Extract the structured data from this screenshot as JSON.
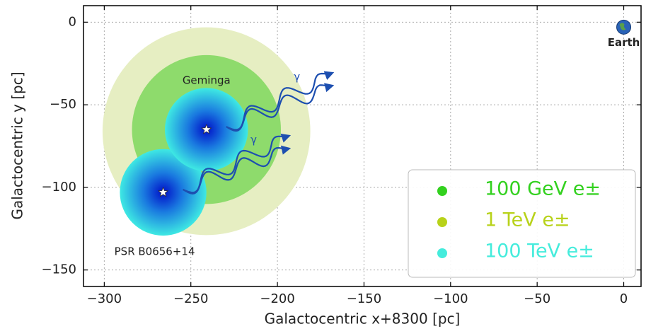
{
  "chart_data": {
    "type": "regions",
    "xlabel": "Galactocentric x+8300 [pc]",
    "ylabel": "Galactocentric y [pc]",
    "xlim": [
      -312,
      10
    ],
    "ylim": [
      -160,
      10
    ],
    "xticks": [
      {
        "value": -300,
        "label": "−300"
      },
      {
        "value": -250,
        "label": "−250"
      },
      {
        "value": -200,
        "label": "−200"
      },
      {
        "value": -150,
        "label": "−150"
      },
      {
        "value": -100,
        "label": "−100"
      },
      {
        "value": -50,
        "label": "−50"
      },
      0
    ],
    "yticks": [
      0,
      {
        "value": -50,
        "label": "−50"
      },
      {
        "value": -100,
        "label": "−100"
      },
      {
        "value": -150,
        "label": "−150"
      }
    ],
    "grid": true,
    "legend": "lower right",
    "series": [
      {
        "name": "100 GeV e±",
        "color": "#8edb6c",
        "legend_color": "#33d11f",
        "regions": [
          {
            "x": -241,
            "y": -65,
            "r": 43
          }
        ]
      },
      {
        "name": "1 TeV e±",
        "color": "#e6eec2",
        "legend_color": "#b8d21a",
        "regions": [
          {
            "x": -241,
            "y": -66,
            "r": 60
          }
        ]
      },
      {
        "name": "100 TeV e±",
        "color": "#3ee9e3",
        "legend_color": "#45ecdc",
        "regions": [
          {
            "x": -241,
            "y": -65,
            "r": 24
          },
          {
            "x": -266,
            "y": -103,
            "r": 25
          }
        ]
      }
    ],
    "sources": [
      {
        "name": "Geminga",
        "x": -241,
        "y": -65,
        "gamma": "γ"
      },
      {
        "name": "PSR B0656+14",
        "x": -266,
        "y": -103,
        "gamma": "γ"
      }
    ],
    "earth": {
      "label": "Earth",
      "x": 0,
      "y": -3
    }
  }
}
